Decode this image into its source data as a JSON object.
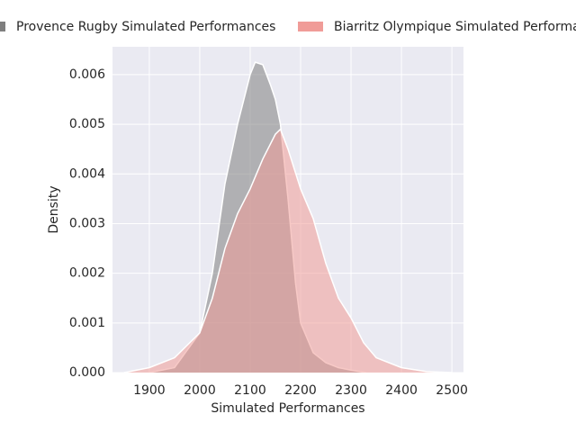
{
  "chart_data": {
    "type": "area",
    "xlabel": "Simulated Performances",
    "ylabel": "Density",
    "xlim": [
      1827,
      2523
    ],
    "ylim": [
      0,
      0.00656
    ],
    "xticks": [
      1900,
      2000,
      2100,
      2200,
      2300,
      2400,
      2500
    ],
    "yticks": [
      {
        "value": 0,
        "label": "0.000"
      },
      {
        "value": 0.001,
        "label": "0.001"
      },
      {
        "value": 0.002,
        "label": "0.002"
      },
      {
        "value": 0.003,
        "label": "0.003"
      },
      {
        "value": 0.004,
        "label": "0.004"
      },
      {
        "value": 0.005,
        "label": "0.005"
      },
      {
        "value": 0.006,
        "label": "0.006"
      }
    ],
    "grid": true,
    "legend": "top",
    "series": [
      {
        "name": "Provence Rugby Simulated Performances",
        "color": "#7f7f7f",
        "x": [
          1900,
          1950,
          2000,
          2025,
          2050,
          2075,
          2100,
          2110,
          2125,
          2140,
          2150,
          2160,
          2175,
          2190,
          2200,
          2225,
          2250,
          2275,
          2300,
          2330
        ],
        "values": [
          0,
          0.0001,
          0.0008,
          0.002,
          0.0038,
          0.005,
          0.006,
          0.00625,
          0.0062,
          0.0058,
          0.0055,
          0.005,
          0.0035,
          0.0018,
          0.001,
          0.0004,
          0.0002,
          0.0001,
          5e-05,
          0
        ]
      },
      {
        "name": "Biarritz Olympique Simulated Performances",
        "color": "#f09c98",
        "x": [
          1850,
          1900,
          1950,
          2000,
          2025,
          2050,
          2075,
          2100,
          2125,
          2150,
          2160,
          2175,
          2200,
          2225,
          2250,
          2275,
          2300,
          2325,
          2350,
          2400,
          2450,
          2500
        ],
        "values": [
          0,
          0.0001,
          0.0003,
          0.0008,
          0.0015,
          0.0025,
          0.0032,
          0.0037,
          0.0043,
          0.0048,
          0.0049,
          0.0045,
          0.0037,
          0.0031,
          0.0022,
          0.0015,
          0.0011,
          0.0006,
          0.0003,
          0.0001,
          2e-05,
          0
        ]
      }
    ]
  }
}
